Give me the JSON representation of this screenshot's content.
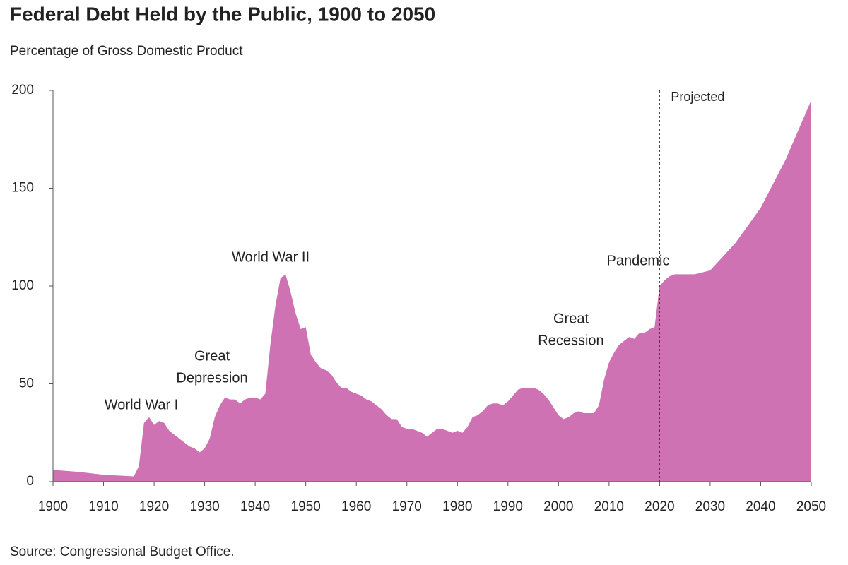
{
  "chart_data": {
    "type": "area",
    "title": "Federal Debt Held by the Public, 1900 to 2050",
    "subtitle": "Percentage of Gross Domestic Product",
    "source": "Source: Congressional Budget Office.",
    "color": "#cf72b4",
    "x": [
      1900,
      1905,
      1910,
      1916,
      1917,
      1918,
      1919,
      1920,
      1921,
      1922,
      1923,
      1924,
      1925,
      1926,
      1927,
      1928,
      1929,
      1930,
      1931,
      1932,
      1933,
      1934,
      1935,
      1936,
      1937,
      1938,
      1939,
      1940,
      1941,
      1942,
      1943,
      1944,
      1945,
      1946,
      1947,
      1948,
      1949,
      1950,
      1951,
      1952,
      1953,
      1954,
      1955,
      1956,
      1957,
      1958,
      1959,
      1960,
      1961,
      1962,
      1963,
      1964,
      1965,
      1966,
      1967,
      1968,
      1969,
      1970,
      1971,
      1972,
      1973,
      1974,
      1975,
      1976,
      1977,
      1978,
      1979,
      1980,
      1981,
      1982,
      1983,
      1984,
      1985,
      1986,
      1987,
      1988,
      1989,
      1990,
      1991,
      1992,
      1993,
      1994,
      1995,
      1996,
      1997,
      1998,
      1999,
      2000,
      2001,
      2002,
      2003,
      2004,
      2005,
      2006,
      2007,
      2008,
      2009,
      2010,
      2011,
      2012,
      2013,
      2014,
      2015,
      2016,
      2017,
      2018,
      2019,
      2020,
      2021,
      2022,
      2023,
      2025,
      2027,
      2030,
      2035,
      2040,
      2045,
      2050
    ],
    "values": [
      6,
      5,
      3.5,
      2.7,
      8,
      30,
      33,
      29,
      31,
      30,
      26,
      24,
      22,
      20,
      18,
      17,
      15,
      17,
      22,
      33,
      39,
      43,
      42,
      42,
      40,
      42,
      43,
      43,
      42,
      45,
      70,
      90,
      104,
      106,
      97,
      86,
      78,
      79,
      65,
      61,
      58,
      57,
      55,
      51,
      48,
      48,
      46,
      45,
      44,
      42,
      41,
      39,
      37,
      34,
      32,
      32,
      28,
      27,
      27,
      26,
      25,
      23,
      25,
      27,
      27,
      26,
      25,
      26,
      25,
      28,
      33,
      34,
      36,
      39,
      40,
      40,
      39,
      41,
      44,
      47,
      48,
      48,
      48,
      47,
      45,
      42,
      38,
      34,
      32,
      33,
      35,
      36,
      35,
      35,
      35,
      39,
      52,
      61,
      66,
      70,
      72,
      74,
      73,
      76,
      76,
      78,
      79,
      100,
      103,
      105,
      106,
      106,
      106,
      108,
      122,
      140,
      165,
      195
    ],
    "xlim": [
      1900,
      2050
    ],
    "xticks": [
      1900,
      1910,
      1920,
      1930,
      1940,
      1950,
      1960,
      1970,
      1980,
      1990,
      2000,
      2010,
      2020,
      2030,
      2040,
      2050
    ],
    "ylim": [
      0,
      200
    ],
    "yticks": [
      0,
      50,
      100,
      150,
      200
    ],
    "projection_start": 2020,
    "projection_label": "Projected",
    "annotations": [
      [
        "World War I"
      ],
      [
        "Great",
        "Depression"
      ],
      [
        "World War II"
      ],
      [
        "Great",
        "Recession"
      ],
      [
        "Pandemic"
      ]
    ]
  }
}
